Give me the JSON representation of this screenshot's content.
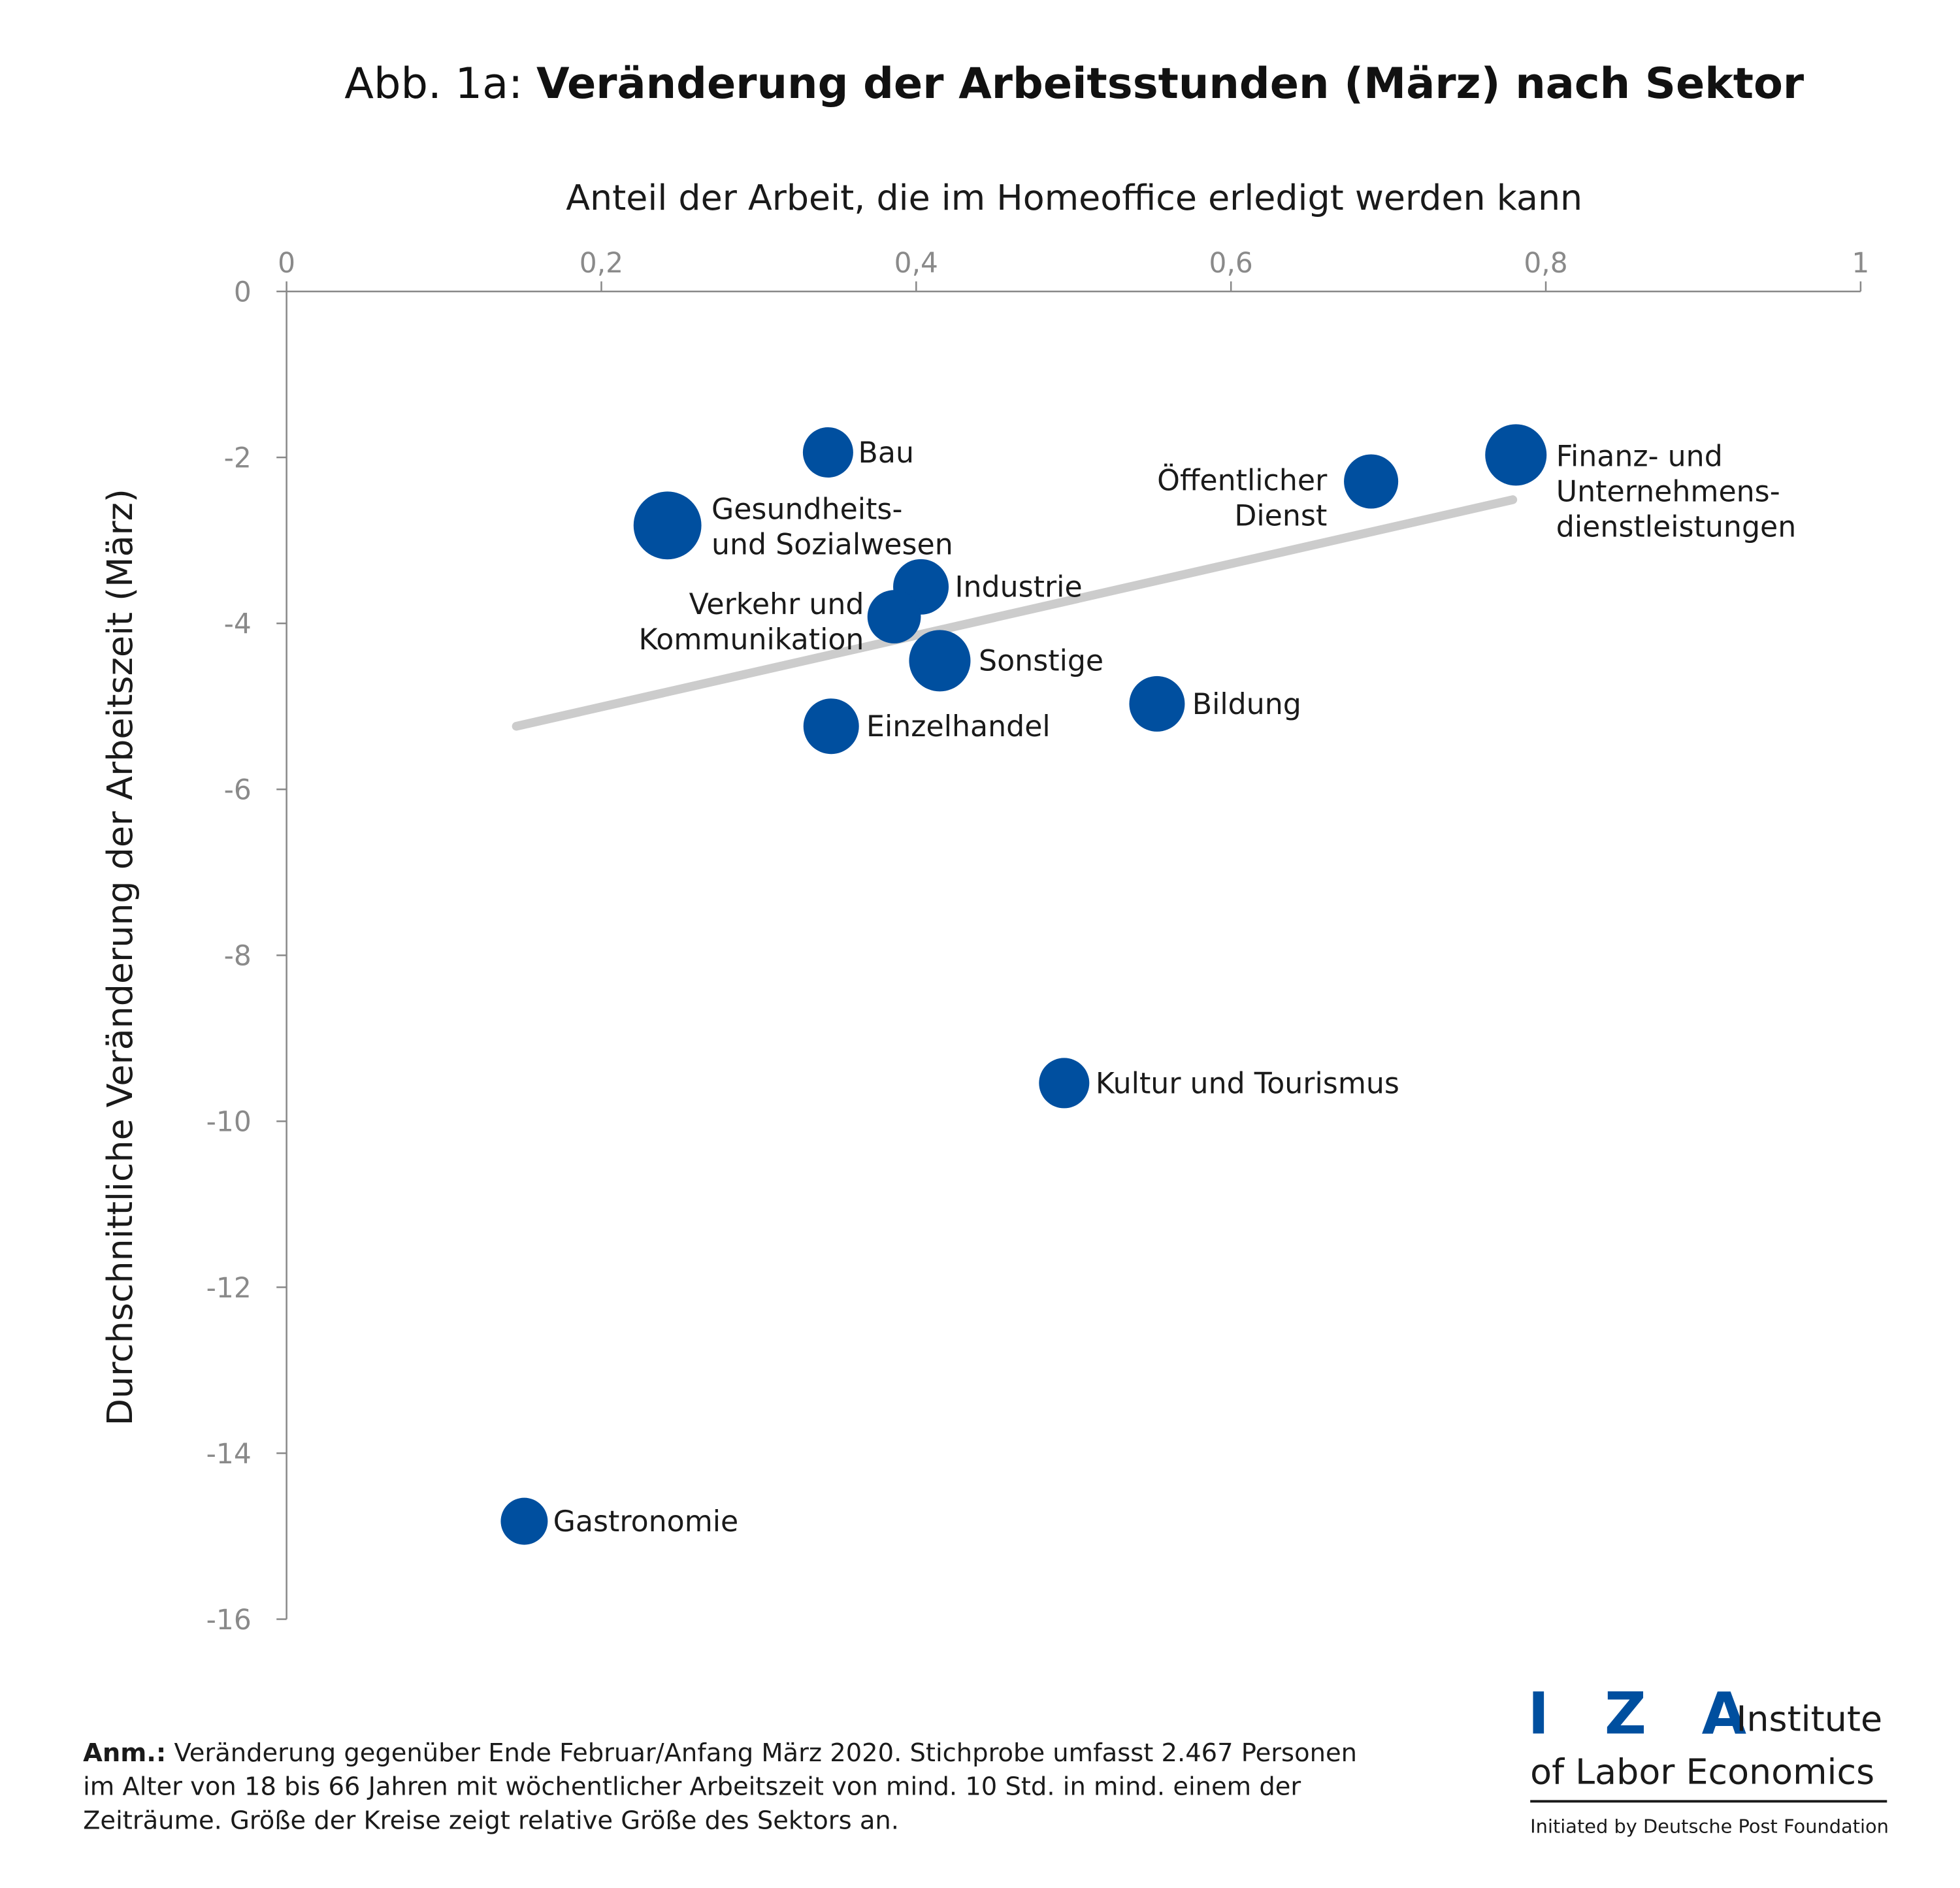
{
  "title": {
    "prefix": "Abb. 1a:",
    "bold": "Veränderung der Arbeitsstunden (März) nach Sektor"
  },
  "chart_data": {
    "type": "scatter",
    "title": "Abb. 1a: Veränderung der Arbeitsstunden (März) nach Sektor",
    "xlabel": "Anteil der Arbeit, die im Homeoffice erledigt werden kann",
    "ylabel": "Durchschnittliche Veränderung der Arbeitszeit (März)",
    "xlim": [
      0,
      1
    ],
    "ylim": [
      -16,
      0
    ],
    "xticks": [
      "0",
      "0,2",
      "0,4",
      "0,6",
      "0,8",
      "1"
    ],
    "xtick_values": [
      0,
      0.2,
      0.4,
      0.6,
      0.8,
      1
    ],
    "yticks": [
      "0",
      "-2",
      "-4",
      "-6",
      "-8",
      "-10",
      "-12",
      "-14",
      "-16"
    ],
    "ytick_values": [
      0,
      -2,
      -4,
      -6,
      -8,
      -10,
      -12,
      -14,
      -16
    ],
    "grid": false,
    "point_color": "#004f9f",
    "trend_color": "#cccccc",
    "points": [
      {
        "label": [
          "Bau"
        ],
        "x": 0.344,
        "y": -1.94,
        "size": 0.55
      },
      {
        "label": [
          "Gesundheits-",
          "und Sozialwesen"
        ],
        "x": 0.242,
        "y": -2.82,
        "size": 1.0
      },
      {
        "label": [
          "Industrie"
        ],
        "x": 0.403,
        "y": -3.56,
        "size": 0.67
      },
      {
        "label": [
          "Verkehr und",
          "Kommunikation"
        ],
        "x": 0.386,
        "y": -3.92,
        "size": 0.62
      },
      {
        "label": [
          "Sonstige"
        ],
        "x": 0.415,
        "y": -4.45,
        "size": 0.82
      },
      {
        "label": [
          "Einzelhandel"
        ],
        "x": 0.346,
        "y": -5.24,
        "size": 0.67
      },
      {
        "label": [
          "Bildung"
        ],
        "x": 0.553,
        "y": -4.97,
        "size": 0.67
      },
      {
        "label": [
          "Öffentlicher",
          "Dienst"
        ],
        "x": 0.689,
        "y": -2.29,
        "size": 0.64
      },
      {
        "label": [
          "Finanz- und",
          "Unternehmens-",
          "dienstleistungen"
        ],
        "x": 0.781,
        "y": -1.97,
        "size": 0.82
      },
      {
        "label": [
          "Kultur und Tourismus"
        ],
        "x": 0.494,
        "y": -9.54,
        "size": 0.55
      },
      {
        "label": [
          "Gastronomie"
        ],
        "x": 0.151,
        "y": -14.82,
        "size": 0.48
      }
    ],
    "trend_line": [
      {
        "x": 0.146,
        "y": -5.24
      },
      {
        "x": 0.779,
        "y": -2.51
      }
    ]
  },
  "note": {
    "bold": "Anm.:",
    "lines": [
      "Veränderung gegenüber Ende Februar/Anfang März 2020. Stichprobe umfasst 2.467 Personen",
      "im Alter von 18 bis 66 Jahren mit wöchentlicher Arbeitszeit von mind. 10 Std. in mind. einem der",
      "Zeiträume. Größe der Kreise zeigt relative Größe des Sektors an."
    ]
  },
  "logo": {
    "letters": "I Z A",
    "line1": "Institute",
    "line2": "of Labor Economics",
    "tagline": "Initiated by Deutsche Post Foundation"
  }
}
